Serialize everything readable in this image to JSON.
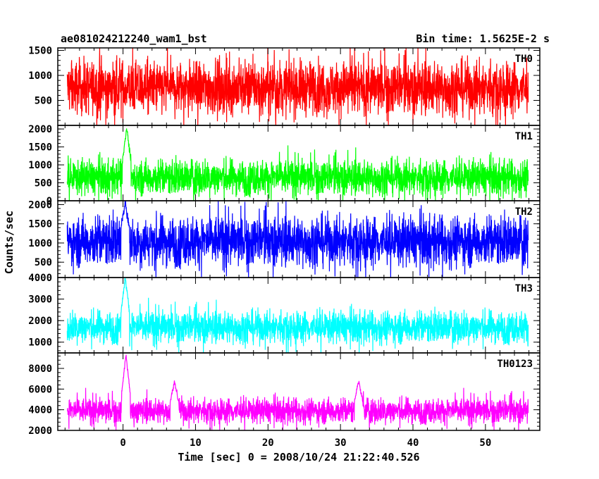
{
  "header": {
    "title": "ae081024212240_wam1_bst",
    "bin_time": "Bin time: 1.5625E-2 s"
  },
  "axes": {
    "xlabel": "Time [sec] 0 = 2008/10/24 21:22:40.526",
    "ylabel": "Counts/sec"
  },
  "chart_data": {
    "type": "line",
    "title": "ae081024212240_wam1_bst",
    "subtitle": "Bin time: 1.5625E-2 s",
    "xlabel": "Time [sec] 0 = 2008/10/24 21:22:40.526",
    "ylabel": "Counts/sec",
    "xlim": [
      -9,
      57.5
    ],
    "x_range_data": [
      -7.7,
      55.9
    ],
    "bin_time": 0.015625,
    "x_ticks": [
      0,
      10,
      20,
      30,
      40,
      50
    ],
    "grid": false,
    "panels": [
      {
        "name": "TH0",
        "color": "#ff0000",
        "ylim": [
          0,
          1550
        ],
        "y_ticks": [
          500,
          1000,
          1500
        ],
        "baseline": 750,
        "noise": 270,
        "spikes": []
      },
      {
        "name": "TH1",
        "color": "#00ff00",
        "ylim": [
          0,
          2100
        ],
        "y_ticks": [
          0,
          500,
          1000,
          1500,
          2000
        ],
        "baseline": 650,
        "noise": 250,
        "spikes": [
          {
            "t": 0.5,
            "value": 2050
          }
        ]
      },
      {
        "name": "TH2",
        "color": "#0000ff",
        "ylim": [
          100,
          2100
        ],
        "y_ticks": [
          500,
          1000,
          1500,
          2000
        ],
        "baseline": 1050,
        "noise": 330,
        "spikes": [
          {
            "t": 0.3,
            "value": 2050
          }
        ]
      },
      {
        "name": "TH3",
        "color": "#00ffff",
        "ylim": [
          500,
          4000
        ],
        "y_ticks": [
          1000,
          2000,
          3000,
          4000
        ],
        "baseline": 1700,
        "noise": 380,
        "spikes": [
          {
            "t": 0.3,
            "value": 4000
          }
        ]
      },
      {
        "name": "TH0123",
        "color": "#ff00ff",
        "ylim": [
          2000,
          9500
        ],
        "y_ticks": [
          2000,
          4000,
          6000,
          8000
        ],
        "baseline": 3900,
        "noise": 620,
        "spikes": [
          {
            "t": 0.4,
            "value": 9300
          },
          {
            "t": 7.1,
            "value": 6700
          },
          {
            "t": 32.5,
            "value": 6800
          }
        ]
      }
    ]
  }
}
